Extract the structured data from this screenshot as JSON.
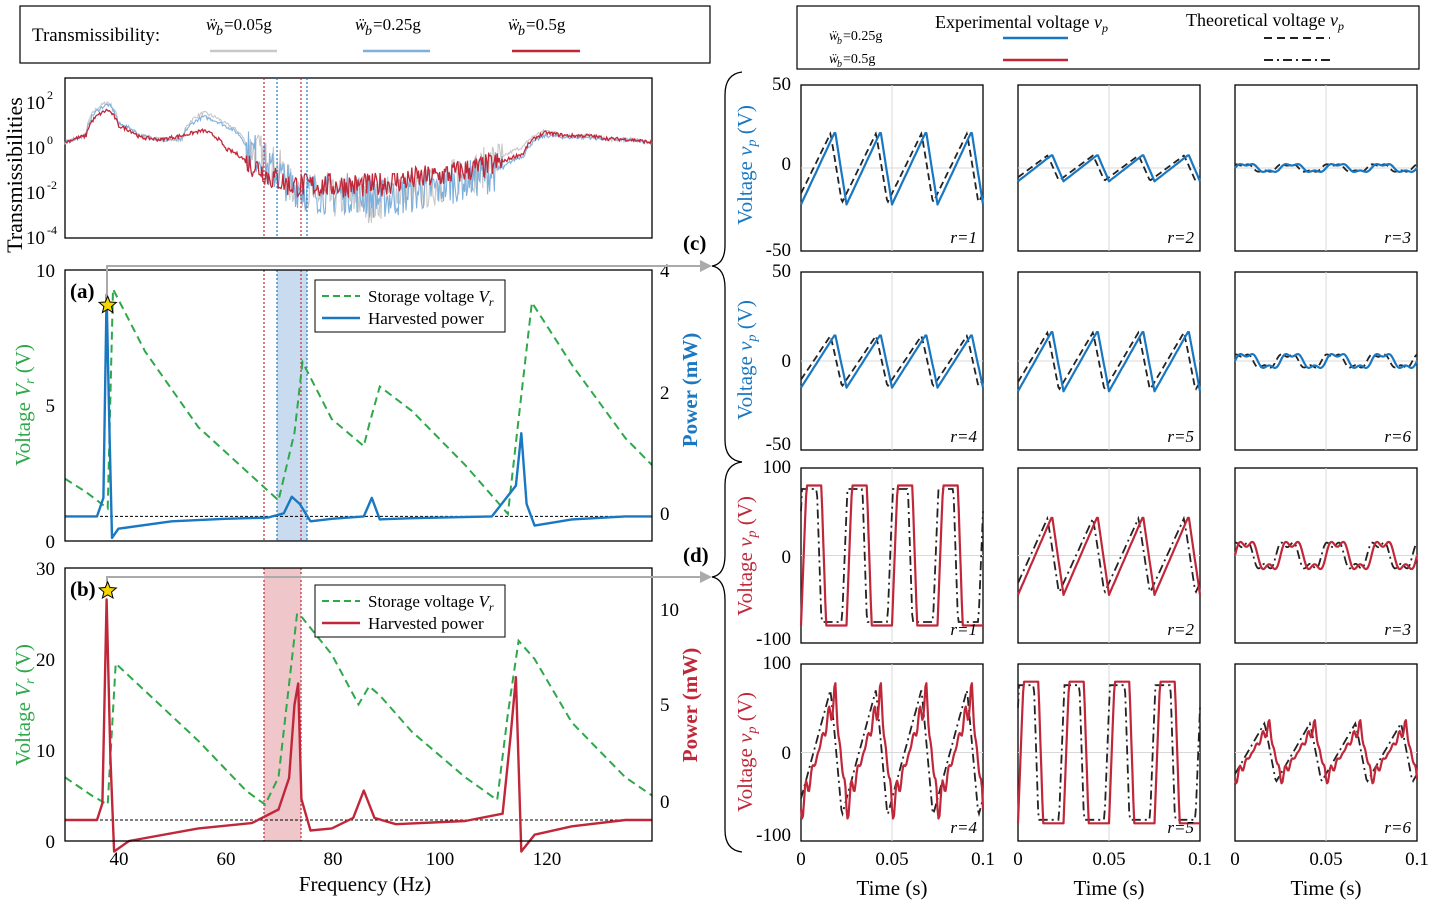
{
  "colors": {
    "light_gray": "#c8c8c8",
    "light_blue": "#7fb0dc",
    "blue": "#1a78c2",
    "red": "#c0283a",
    "green": "#2ea84a",
    "dark": "#222222",
    "band_blue": "#c9dcef",
    "band_red": "#efc6c9"
  },
  "top_legend": {
    "title": "Transmissibility:",
    "entries": [
      {
        "prefix": "ẅ",
        "sub": "b",
        "value": "=0.05g",
        "color": "light_gray"
      },
      {
        "prefix": "ẅ",
        "sub": "b",
        "value": "=0.25g",
        "color": "light_blue"
      },
      {
        "prefix": "ẅ",
        "sub": "b",
        "value": "=0.5g",
        "color": "red"
      }
    ]
  },
  "right_legend": {
    "row1": {
      "prefix": "ẅ",
      "sub": "b",
      "value": "=0.25g"
    },
    "row2": {
      "prefix": "ẅ",
      "sub": "b",
      "value": "=0.5g"
    },
    "exp_label": "Experimental voltage ",
    "theo_label": "Theoretical voltage ",
    "var_v": "v",
    "var_p": "p"
  },
  "chart_data": [
    {
      "id": "transmissibility",
      "type": "line",
      "ylabel": "Transmissibilities",
      "yscale": "log",
      "ylim": [
        0.0001,
        1000
      ],
      "yticks": [
        {
          "base": "10",
          "exp": "2"
        },
        {
          "base": "10",
          "exp": "0"
        },
        {
          "base": "10",
          "exp": "-2"
        },
        {
          "base": "10",
          "exp": "-4"
        }
      ],
      "xlim": [
        30,
        140
      ],
      "series": [
        {
          "name": "ẅb=0.05g",
          "color": "light_gray",
          "x": [
            30,
            34,
            38,
            40,
            44,
            48,
            52,
            56,
            60,
            64,
            68,
            72,
            76,
            80,
            84,
            88,
            92,
            96,
            100,
            104,
            108,
            112,
            116,
            120,
            124,
            128,
            132,
            136,
            140
          ],
          "y": [
            1.5,
            3,
            90,
            10,
            3,
            2,
            2,
            30,
            10,
            1,
            0.2,
            0.02,
            0.01,
            0.005,
            0.005,
            0.003,
            0.01,
            0.01,
            0.02,
            0.05,
            0.1,
            0.3,
            1,
            5,
            3,
            3,
            2,
            2,
            1.5
          ]
        },
        {
          "name": "ẅb=0.25g",
          "color": "light_blue",
          "x": [
            30,
            34,
            38,
            40,
            44,
            48,
            52,
            56,
            60,
            64,
            68,
            72,
            76,
            80,
            84,
            88,
            92,
            96,
            100,
            104,
            108,
            112,
            116,
            120,
            124,
            128,
            132,
            136,
            140
          ],
          "y": [
            1.5,
            3,
            70,
            10,
            3,
            2,
            2,
            20,
            8,
            0.8,
            0.1,
            0.02,
            0.01,
            0.008,
            0.01,
            0.005,
            0.006,
            0.01,
            0.015,
            0.03,
            0.05,
            0.1,
            0.4,
            3,
            2.5,
            2.5,
            2,
            2,
            1.5
          ]
        },
        {
          "name": "ẅb=0.5g",
          "color": "red",
          "x": [
            30,
            34,
            38,
            40,
            44,
            48,
            52,
            56,
            60,
            64,
            68,
            72,
            76,
            80,
            84,
            88,
            92,
            96,
            100,
            104,
            108,
            112,
            116,
            120,
            124,
            128,
            132,
            136,
            140
          ],
          "y": [
            1.5,
            3,
            40,
            8,
            2.5,
            2,
            3,
            5,
            0.8,
            0.2,
            0.05,
            0.02,
            0.02,
            0.02,
            0.02,
            0.02,
            0.03,
            0.04,
            0.05,
            0.08,
            0.12,
            0.2,
            0.5,
            4,
            3,
            3,
            2.2,
            2,
            1.5
          ]
        }
      ]
    },
    {
      "id": "panel_a",
      "label": "(a)",
      "type": "line",
      "xlim": [
        30,
        140
      ],
      "ylim_left": [
        0,
        10
      ],
      "ylim_right": [
        -0.4,
        4
      ],
      "yticks_left": [
        "0",
        "5",
        "10"
      ],
      "yticks_right": [
        "0",
        "2",
        "4"
      ],
      "ylabel_left_prefix": "Voltage ",
      "ylabel_left_var": "V",
      "ylabel_left_sub": "r",
      "ylabel_left_suffix": " (V)",
      "ylabel_right": "Power (mW)",
      "legend": {
        "storage": "Storage voltage ",
        "storage_var": "V",
        "storage_sub": "r",
        "power": "Harvested power"
      },
      "bands": {
        "red_lines_hz": [
          67.5,
          74.3
        ],
        "blue_lines_hz": [
          69.8,
          75.3
        ],
        "shade_hz": [
          69.8,
          75.3
        ]
      },
      "storage_voltage": {
        "x": [
          30,
          34,
          38,
          39,
          45,
          55,
          65,
          70,
          73,
          74.5,
          80,
          86,
          87,
          89,
          95,
          105,
          113,
          115,
          117.5,
          125,
          135,
          140
        ],
        "y": [
          2.3,
          1.8,
          1.2,
          9.3,
          7,
          4.2,
          2.4,
          1.5,
          4,
          6.6,
          4.5,
          3.5,
          4.3,
          5.7,
          4.8,
          2.8,
          1.0,
          4.5,
          8.8,
          6.5,
          3.8,
          2.8
        ]
      },
      "power": {
        "x": [
          30,
          36,
          37.2,
          37.8,
          38.3,
          38.8,
          40,
          50,
          60,
          68,
          71,
          72.5,
          74,
          76,
          80,
          86,
          87.5,
          89,
          95,
          110,
          114.5,
          115.5,
          116.5,
          118,
          125,
          135,
          140
        ],
        "y": [
          0,
          0,
          0.3,
          3.6,
          1.5,
          -0.35,
          -0.2,
          -0.08,
          -0.04,
          -0.02,
          0.05,
          0.32,
          0.2,
          -0.08,
          -0.04,
          0,
          0.3,
          -0.05,
          -0.03,
          0,
          0.5,
          1.35,
          0.2,
          -0.15,
          -0.05,
          0,
          0
        ]
      },
      "star": {
        "x": 38,
        "y": 8.7
      }
    },
    {
      "id": "panel_b",
      "label": "(b)",
      "type": "line",
      "xlim": [
        30,
        140
      ],
      "xticks": [
        "40",
        "60",
        "80",
        "100",
        "120"
      ],
      "xlabel": "Frequency (Hz)",
      "ylim_left": [
        0,
        30
      ],
      "ylim_right": [
        -1,
        12
      ],
      "yticks_left": [
        "0",
        "10",
        "20",
        "30"
      ],
      "yticks_right": [
        "0",
        "5",
        "10"
      ],
      "ylabel_left_prefix": "Voltage ",
      "ylabel_left_var": "V",
      "ylabel_left_sub": "r",
      "ylabel_left_suffix": " (V)",
      "ylabel_right": "Power (mW)",
      "legend": {
        "storage": "Storage voltage ",
        "storage_var": "V",
        "storage_sub": "r",
        "power": "Harvested power"
      },
      "bands": {
        "red_lines_hz": [
          67.5,
          74.3
        ],
        "shade_hz": [
          67.5,
          74.3
        ]
      },
      "storage_voltage": {
        "x": [
          30,
          35,
          38,
          39.5,
          45,
          55,
          64,
          67.5,
          70,
          73.5,
          74.5,
          80,
          85,
          87,
          89,
          95,
          105,
          111,
          113,
          115,
          118,
          125,
          135,
          140
        ],
        "y": [
          7,
          5,
          4,
          19.5,
          16.5,
          11,
          5.5,
          4,
          7,
          25,
          24.5,
          20.5,
          15,
          17,
          16,
          12,
          7,
          4.5,
          14,
          22,
          20,
          13,
          7,
          5
        ]
      },
      "power": {
        "x": [
          30,
          36,
          37,
          37.8,
          38.5,
          39.2,
          42,
          55,
          65,
          70,
          72,
          73,
          73.7,
          74.3,
          76,
          80,
          84,
          86,
          88,
          92,
          105,
          112,
          113.5,
          114.5,
          115.5,
          118,
          125,
          135,
          140
        ],
        "y": [
          0,
          0,
          0.8,
          10.5,
          3,
          -1.5,
          -1,
          -0.4,
          -0.15,
          0.5,
          2,
          5.5,
          6.5,
          1,
          -0.5,
          -0.4,
          0.1,
          1.4,
          0.1,
          -0.2,
          -0.05,
          0.3,
          4,
          6.8,
          -1.5,
          -0.7,
          -0.3,
          0,
          0
        ]
      },
      "star": {
        "x": 38,
        "y": 27.5
      }
    },
    {
      "id": "panel_c",
      "label": "(c)",
      "type": "line",
      "color": "blue",
      "ylabel_prefix": "Voltage ",
      "ylabel_var": "v",
      "ylabel_sub": "p",
      "ylabel_suffix": " (V)",
      "ylim": [
        -50,
        50
      ],
      "yticks": [
        "50",
        "0",
        "-50"
      ],
      "subplots": [
        {
          "r_label": "r=1",
          "amp": 22,
          "kind": "saw"
        },
        {
          "r_label": "r=2",
          "amp": 8,
          "kind": "saw"
        },
        {
          "r_label": "r=3",
          "amp": 3,
          "kind": "wave"
        },
        {
          "r_label": "r=4",
          "amp": 15,
          "kind": "saw"
        },
        {
          "r_label": "r=5",
          "amp": 17,
          "kind": "saw"
        },
        {
          "r_label": "r=6",
          "amp": 5,
          "kind": "wave"
        }
      ]
    },
    {
      "id": "panel_d",
      "label": "(d)",
      "type": "line",
      "color": "red",
      "ylabel_prefix": "Voltage ",
      "ylabel_var": "v",
      "ylabel_sub": "p",
      "ylabel_suffix": " (V)",
      "ylim": [
        -100,
        100
      ],
      "yticks": [
        "100",
        "0",
        "-100"
      ],
      "xlim": [
        0,
        0.1
      ],
      "xticks": [
        "0",
        "0.05",
        "0.1"
      ],
      "xlabel": "Time (s)",
      "subplots": [
        {
          "r_label": "r=1",
          "amp": 80,
          "kind": "square"
        },
        {
          "r_label": "r=2",
          "amp": 45,
          "kind": "saw"
        },
        {
          "r_label": "r=3",
          "amp": 20,
          "kind": "wave"
        },
        {
          "r_label": "r=4",
          "amp": 75,
          "kind": "spiky"
        },
        {
          "r_label": "r=5",
          "amp": 80,
          "kind": "square"
        },
        {
          "r_label": "r=6",
          "amp": 35,
          "kind": "spiky"
        }
      ]
    }
  ]
}
